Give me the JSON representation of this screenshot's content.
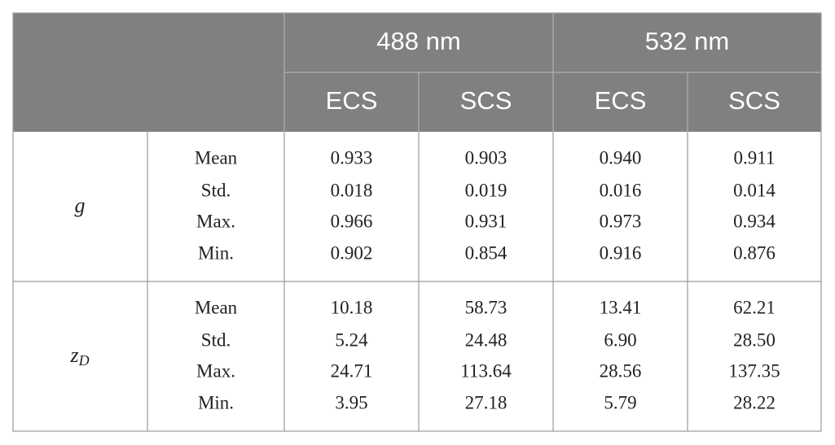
{
  "header": {
    "groups": [
      "488 nm",
      "532 nm"
    ],
    "subcolumns": [
      "ECS",
      "SCS",
      "ECS",
      "SCS"
    ]
  },
  "blocks": [
    {
      "symbol": "g",
      "stats": [
        "Mean",
        "Std.",
        "Max.",
        "Min."
      ],
      "rows": [
        [
          "0.933",
          "0.903",
          "0.940",
          "0.911"
        ],
        [
          "0.018",
          "0.019",
          "0.016",
          "0.014"
        ],
        [
          "0.966",
          "0.931",
          "0.973",
          "0.934"
        ],
        [
          "0.902",
          "0.854",
          "0.916",
          "0.876"
        ]
      ]
    },
    {
      "symbol": "z",
      "subscript": "D",
      "stats": [
        "Mean",
        "Std.",
        "Max.",
        "Min."
      ],
      "rows": [
        [
          "10.18",
          "58.73",
          "13.41",
          "62.21"
        ],
        [
          "5.24",
          "24.48",
          "6.90",
          "28.50"
        ],
        [
          "24.71",
          "113.64",
          "28.56",
          "137.35"
        ],
        [
          "3.95",
          "27.18",
          "5.79",
          "28.22"
        ]
      ]
    }
  ]
}
